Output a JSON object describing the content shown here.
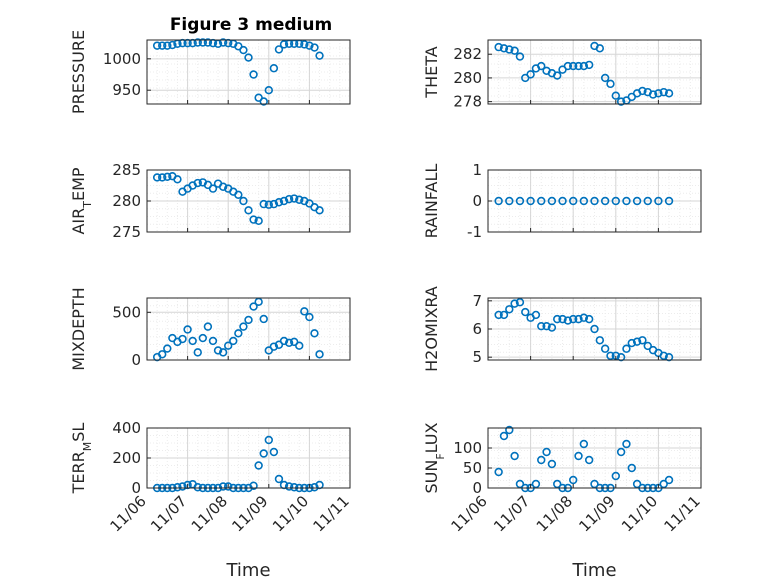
{
  "figure": {
    "title": "Figure 3 medium"
  },
  "colors": {
    "marker": "#0072BD",
    "axis": "#262626",
    "grid": "#d6d6d6",
    "minor_grid": "#ececec"
  },
  "chart_data": [
    {
      "type": "scatter",
      "ylabel": "PRESSURE",
      "xlabel": "",
      "ylim": [
        928,
        1030
      ],
      "yticks": [
        950,
        1000
      ],
      "x_range": [
        "11/06",
        "11/11"
      ],
      "x": [
        "11/06 06:00",
        "11/06 09:00",
        "11/06 12:00",
        "11/06 15:00",
        "11/06 18:00",
        "11/06 21:00",
        "11/07 00:00",
        "11/07 03:00",
        "11/07 06:00",
        "11/07 09:00",
        "11/07 12:00",
        "11/07 15:00",
        "11/07 18:00",
        "11/07 21:00",
        "11/08 00:00",
        "11/08 03:00",
        "11/08 06:00",
        "11/08 09:00",
        "11/08 12:00",
        "11/08 15:00",
        "11/08 18:00",
        "11/08 21:00",
        "11/09 00:00",
        "11/09 03:00",
        "11/09 06:00",
        "11/09 09:00",
        "11/09 12:00",
        "11/09 15:00",
        "11/09 18:00",
        "11/09 21:00",
        "11/10 00:00",
        "11/10 03:00",
        "11/10 06:00"
      ],
      "y": [
        1021,
        1021,
        1021,
        1022,
        1024,
        1025,
        1025,
        1025,
        1026,
        1026,
        1026,
        1025,
        1024,
        1026,
        1025,
        1024,
        1020,
        1014,
        1002,
        975,
        938,
        932,
        950,
        985,
        1015,
        1023,
        1024,
        1024,
        1024,
        1023,
        1021,
        1018,
        1005
      ]
    },
    {
      "type": "scatter",
      "ylabel": "THETA",
      "xlabel": "",
      "ylim": [
        277.8,
        283.2
      ],
      "yticks": [
        278,
        280,
        282
      ],
      "x_range": [
        "11/06",
        "11/11"
      ],
      "x": [
        "11/06 06:00",
        "11/06 09:00",
        "11/06 12:00",
        "11/06 15:00",
        "11/06 18:00",
        "11/06 21:00",
        "11/07 00:00",
        "11/07 03:00",
        "11/07 06:00",
        "11/07 09:00",
        "11/07 12:00",
        "11/07 15:00",
        "11/07 18:00",
        "11/07 21:00",
        "11/08 00:00",
        "11/08 03:00",
        "11/08 06:00",
        "11/08 09:00",
        "11/08 12:00",
        "11/08 15:00",
        "11/08 18:00",
        "11/08 21:00",
        "11/09 00:00",
        "11/09 03:00",
        "11/09 06:00",
        "11/09 09:00",
        "11/09 12:00",
        "11/09 15:00",
        "11/09 18:00",
        "11/09 21:00",
        "11/10 00:00",
        "11/10 03:00",
        "11/10 06:00"
      ],
      "y": [
        282.6,
        282.5,
        282.4,
        282.3,
        281.8,
        280.0,
        280.3,
        280.8,
        281.0,
        280.6,
        280.4,
        280.2,
        280.7,
        281.0,
        281.0,
        281.0,
        281.0,
        281.1,
        282.7,
        282.5,
        280.0,
        279.5,
        278.5,
        278.0,
        278.1,
        278.4,
        278.7,
        278.9,
        278.8,
        278.6,
        278.7,
        278.8,
        278.7
      ]
    },
    {
      "type": "scatter",
      "ylabel": "AIR_TEMP",
      "xlabel": "",
      "ylim": [
        275,
        285
      ],
      "yticks": [
        275,
        280,
        285
      ],
      "x_range": [
        "11/06",
        "11/11"
      ],
      "x": [
        "11/06 06:00",
        "11/06 09:00",
        "11/06 12:00",
        "11/06 15:00",
        "11/06 18:00",
        "11/06 21:00",
        "11/07 00:00",
        "11/07 03:00",
        "11/07 06:00",
        "11/07 09:00",
        "11/07 12:00",
        "11/07 15:00",
        "11/07 18:00",
        "11/07 21:00",
        "11/08 00:00",
        "11/08 03:00",
        "11/08 06:00",
        "11/08 09:00",
        "11/08 12:00",
        "11/08 15:00",
        "11/08 18:00",
        "11/08 21:00",
        "11/09 00:00",
        "11/09 03:00",
        "11/09 06:00",
        "11/09 09:00",
        "11/09 12:00",
        "11/09 15:00",
        "11/09 18:00",
        "11/09 21:00",
        "11/10 00:00",
        "11/10 03:00",
        "11/10 06:00"
      ],
      "y": [
        283.8,
        283.8,
        283.9,
        284.0,
        283.5,
        281.5,
        282.0,
        282.5,
        282.9,
        283.0,
        282.6,
        282.0,
        282.8,
        282.3,
        282.0,
        281.5,
        281.0,
        280.0,
        278.5,
        277.0,
        276.8,
        279.5,
        279.4,
        279.5,
        279.8,
        280.0,
        280.3,
        280.4,
        280.2,
        280.0,
        279.6,
        279.0,
        278.5
      ]
    },
    {
      "type": "scatter",
      "ylabel": "RAINFALL",
      "xlabel": "",
      "ylim": [
        -1,
        1
      ],
      "yticks": [
        -1,
        0,
        1
      ],
      "x_range": [
        "11/06",
        "11/11"
      ],
      "x": [
        "11/06 06:00",
        "11/06 12:00",
        "11/06 18:00",
        "11/07 00:00",
        "11/07 06:00",
        "11/07 12:00",
        "11/07 18:00",
        "11/08 00:00",
        "11/08 06:00",
        "11/08 12:00",
        "11/08 18:00",
        "11/09 00:00",
        "11/09 06:00",
        "11/09 12:00",
        "11/09 18:00",
        "11/10 00:00",
        "11/10 06:00"
      ],
      "y": [
        0,
        0,
        0,
        0,
        0,
        0,
        0,
        0,
        0,
        0,
        0,
        0,
        0,
        0,
        0,
        0,
        0
      ]
    },
    {
      "type": "scatter",
      "ylabel": "MIXDEPTH",
      "xlabel": "",
      "ylim": [
        0,
        650
      ],
      "yticks": [
        0,
        500
      ],
      "x_range": [
        "11/06",
        "11/11"
      ],
      "x": [
        "11/06 06:00",
        "11/06 09:00",
        "11/06 12:00",
        "11/06 15:00",
        "11/06 18:00",
        "11/06 21:00",
        "11/07 00:00",
        "11/07 03:00",
        "11/07 06:00",
        "11/07 09:00",
        "11/07 12:00",
        "11/07 15:00",
        "11/07 18:00",
        "11/07 21:00",
        "11/08 00:00",
        "11/08 03:00",
        "11/08 06:00",
        "11/08 09:00",
        "11/08 12:00",
        "11/08 15:00",
        "11/08 18:00",
        "11/08 21:00",
        "11/09 00:00",
        "11/09 03:00",
        "11/09 06:00",
        "11/09 09:00",
        "11/09 12:00",
        "11/09 15:00",
        "11/09 18:00",
        "11/09 21:00",
        "11/10 00:00",
        "11/10 03:00",
        "11/10 06:00"
      ],
      "y": [
        30,
        60,
        120,
        230,
        190,
        220,
        320,
        200,
        80,
        230,
        350,
        200,
        100,
        80,
        150,
        200,
        280,
        350,
        420,
        560,
        610,
        430,
        100,
        140,
        160,
        200,
        180,
        190,
        150,
        510,
        450,
        280,
        60
      ]
    },
    {
      "type": "scatter",
      "ylabel": "H2OMIXRA",
      "xlabel": "",
      "ylim": [
        4.9,
        7.1
      ],
      "yticks": [
        5,
        6,
        7
      ],
      "x_range": [
        "11/06",
        "11/11"
      ],
      "x": [
        "11/06 06:00",
        "11/06 09:00",
        "11/06 12:00",
        "11/06 15:00",
        "11/06 18:00",
        "11/06 21:00",
        "11/07 00:00",
        "11/07 03:00",
        "11/07 06:00",
        "11/07 09:00",
        "11/07 12:00",
        "11/07 15:00",
        "11/07 18:00",
        "11/07 21:00",
        "11/08 00:00",
        "11/08 03:00",
        "11/08 06:00",
        "11/08 09:00",
        "11/08 12:00",
        "11/08 15:00",
        "11/08 18:00",
        "11/08 21:00",
        "11/09 00:00",
        "11/09 03:00",
        "11/09 06:00",
        "11/09 09:00",
        "11/09 12:00",
        "11/09 15:00",
        "11/09 18:00",
        "11/09 21:00",
        "11/10 00:00",
        "11/10 03:00",
        "11/10 06:00"
      ],
      "y": [
        6.5,
        6.5,
        6.7,
        6.9,
        6.95,
        6.6,
        6.4,
        6.5,
        6.1,
        6.1,
        6.05,
        6.35,
        6.35,
        6.3,
        6.35,
        6.35,
        6.4,
        6.35,
        6.0,
        5.6,
        5.3,
        5.05,
        5.05,
        5.0,
        5.3,
        5.5,
        5.55,
        5.6,
        5.4,
        5.25,
        5.15,
        5.05,
        5.0
      ]
    },
    {
      "type": "scatter",
      "ylabel": "TERR_MSL",
      "xlabel": "Time",
      "ylim": [
        0,
        400
      ],
      "yticks": [
        0,
        200,
        400
      ],
      "xticks": [
        "11/06",
        "11/07",
        "11/08",
        "11/09",
        "11/10",
        "11/11"
      ],
      "x_range": [
        "11/06",
        "11/11"
      ],
      "x": [
        "11/06 06:00",
        "11/06 09:00",
        "11/06 12:00",
        "11/06 15:00",
        "11/06 18:00",
        "11/06 21:00",
        "11/07 00:00",
        "11/07 03:00",
        "11/07 06:00",
        "11/07 09:00",
        "11/07 12:00",
        "11/07 15:00",
        "11/07 18:00",
        "11/07 21:00",
        "11/08 00:00",
        "11/08 03:00",
        "11/08 06:00",
        "11/08 09:00",
        "11/08 12:00",
        "11/08 15:00",
        "11/08 18:00",
        "11/08 21:00",
        "11/09 00:00",
        "11/09 03:00",
        "11/09 06:00",
        "11/09 09:00",
        "11/09 12:00",
        "11/09 15:00",
        "11/09 18:00",
        "11/09 21:00",
        "11/10 00:00",
        "11/10 03:00",
        "11/10 06:00"
      ],
      "y": [
        0,
        0,
        0,
        0,
        5,
        10,
        20,
        25,
        5,
        0,
        0,
        0,
        0,
        10,
        10,
        0,
        0,
        0,
        0,
        15,
        150,
        230,
        320,
        240,
        60,
        20,
        10,
        5,
        0,
        0,
        0,
        5,
        20
      ]
    },
    {
      "type": "scatter",
      "ylabel": "SUN_FLUX",
      "xlabel": "Time",
      "ylim": [
        0,
        150
      ],
      "yticks": [
        0,
        50,
        100
      ],
      "xticks": [
        "11/06",
        "11/07",
        "11/08",
        "11/09",
        "11/10",
        "11/11"
      ],
      "x_range": [
        "11/06",
        "11/11"
      ],
      "x": [
        "11/06 06:00",
        "11/06 09:00",
        "11/06 12:00",
        "11/06 15:00",
        "11/06 18:00",
        "11/06 21:00",
        "11/07 00:00",
        "11/07 03:00",
        "11/07 06:00",
        "11/07 09:00",
        "11/07 12:00",
        "11/07 15:00",
        "11/07 18:00",
        "11/07 21:00",
        "11/08 00:00",
        "11/08 03:00",
        "11/08 06:00",
        "11/08 09:00",
        "11/08 12:00",
        "11/08 15:00",
        "11/08 18:00",
        "11/08 21:00",
        "11/09 00:00",
        "11/09 03:00",
        "11/09 06:00",
        "11/09 09:00",
        "11/09 12:00",
        "11/09 15:00",
        "11/09 18:00",
        "11/09 21:00",
        "11/10 00:00",
        "11/10 03:00",
        "11/10 06:00"
      ],
      "y": [
        40,
        130,
        145,
        80,
        10,
        0,
        0,
        10,
        70,
        90,
        60,
        10,
        0,
        0,
        20,
        80,
        110,
        70,
        10,
        0,
        0,
        0,
        30,
        90,
        110,
        50,
        10,
        0,
        0,
        0,
        0,
        10,
        20
      ]
    }
  ]
}
